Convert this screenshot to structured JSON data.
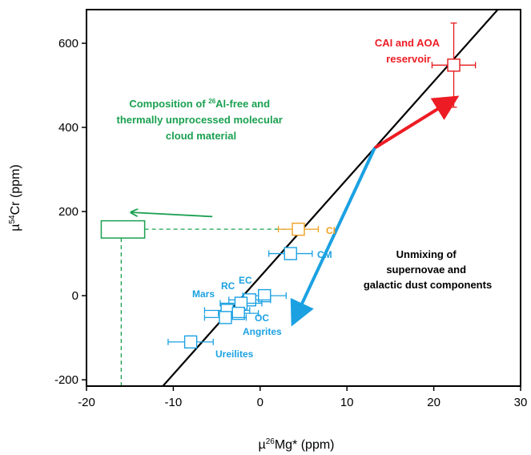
{
  "chart_data": {
    "type": "scatter",
    "xlabel": {
      "pre": "µ",
      "sup": "26",
      "post": "Mg* (ppm)"
    },
    "ylabel": {
      "pre": "µ",
      "sup": "54",
      "post": "Cr (ppm)"
    },
    "xlim": [
      -20,
      30
    ],
    "ylim": [
      -215,
      680
    ],
    "xticks": [
      -20,
      -10,
      0,
      10,
      20,
      30
    ],
    "yticks": [
      -200,
      0,
      200,
      400,
      600
    ],
    "grid": false,
    "regression_line": {
      "slope": 23.2,
      "intercept": 45
    },
    "points": [
      {
        "x": 22.3,
        "y": 548,
        "xerr": 2.5,
        "yerr": 100,
        "color": "#e41a1c",
        "label": ""
      },
      {
        "x": 4.4,
        "y": 158,
        "xerr": 2.3,
        "yerr": 14,
        "color": "#f0a020",
        "label": "CI"
      },
      {
        "x": 3.5,
        "y": 100,
        "xerr": 2.5,
        "yerr": 14,
        "color": "#1ba1e2",
        "label": "CM"
      },
      {
        "x": 0.5,
        "y": 0,
        "xerr": 2.5,
        "yerr": 14,
        "color": "#1ba1e2",
        "label": "EC"
      },
      {
        "x": -1.2,
        "y": -10,
        "xerr": 2.4,
        "yerr": 14,
        "color": "#1ba1e2",
        "label": ""
      },
      {
        "x": -2.2,
        "y": -18,
        "xerr": 2.4,
        "yerr": 14,
        "color": "#1ba1e2",
        "label": "RC"
      },
      {
        "x": -3.8,
        "y": -35,
        "xerr": 2.6,
        "yerr": 14,
        "color": "#1ba1e2",
        "label": "Mars"
      },
      {
        "x": -2.5,
        "y": -42,
        "xerr": 2.3,
        "yerr": 14,
        "color": "#1ba1e2",
        "label": ""
      },
      {
        "x": -4.0,
        "y": -52,
        "xerr": 2.4,
        "yerr": 14,
        "color": "#1ba1e2",
        "label": ""
      },
      {
        "x": -8.0,
        "y": -110,
        "xerr": 2.6,
        "yerr": 14,
        "color": "#1ba1e2",
        "label": ""
      }
    ],
    "labels": {
      "cai": [
        "CAI and AOA",
        "reservoir"
      ],
      "oc": "OC",
      "angrites": "Angrites",
      "ureilites": "Ureilites",
      "unmixing": [
        "Unmixing of",
        "supernovae and",
        "galactic dust components"
      ],
      "composition": {
        "line1_pre": "Composition of ",
        "line1_sup": "26",
        "line1_post": "Al-free and",
        "line2": "thermally unprocessed molecular",
        "line3": "cloud material"
      }
    },
    "molecular_cloud_box": {
      "x_min": -18.3,
      "x_max": -13.3,
      "y_min": 137,
      "y_max": 178,
      "x_mark": -16,
      "y_mark": 158
    },
    "colors": {
      "red": "#ed1c24",
      "cyan": "#1ba1e2",
      "orange": "#f0a020",
      "green": "#1aa050",
      "axis": "#000000"
    }
  }
}
